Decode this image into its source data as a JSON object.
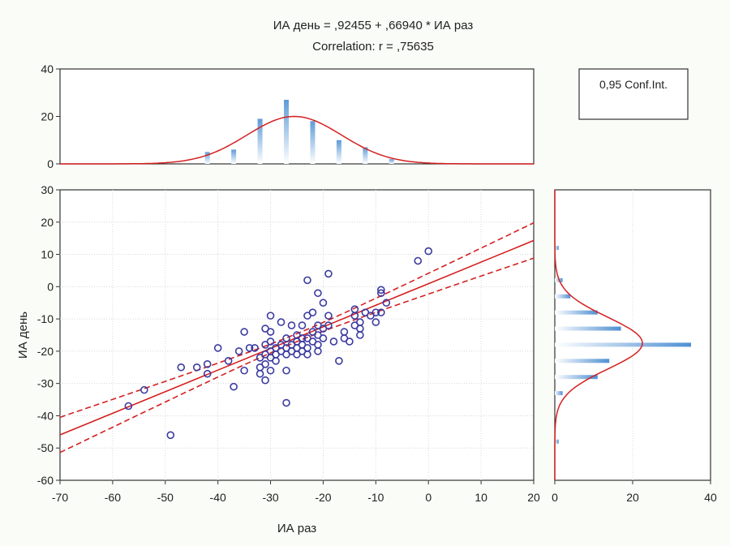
{
  "chart_data": {
    "type": "scatter",
    "title": "ИА день = ,92455 + ,66940 * ИА раз",
    "subtitle": "Correlation: r = ,75635",
    "xlabel": "ИА раз",
    "ylabel": "ИА день",
    "xlim": [
      -70,
      20
    ],
    "ylim": [
      -60,
      30
    ],
    "xticks": [
      "-70",
      "-60",
      "-50",
      "-40",
      "-30",
      "-20",
      "-10",
      "0",
      "10",
      "20"
    ],
    "yticks": [
      "30",
      "20",
      "10",
      "0",
      "-10",
      "-20",
      "-30",
      "-40",
      "-50",
      "-60"
    ],
    "legend": "0,95 Conf.Int.",
    "regression": {
      "intercept": 0.92455,
      "slope": 0.6694,
      "r": 0.75635
    },
    "colors": {
      "points": "#3a3aa0",
      "fit": "#d42020",
      "bars": "#7fb1e3"
    },
    "points": [
      {
        "x": -57,
        "y": -37
      },
      {
        "x": -54,
        "y": -32
      },
      {
        "x": -49,
        "y": -46
      },
      {
        "x": -47,
        "y": -25
      },
      {
        "x": -44,
        "y": -25
      },
      {
        "x": -42,
        "y": -27
      },
      {
        "x": -42,
        "y": -24
      },
      {
        "x": -40,
        "y": -19
      },
      {
        "x": -38,
        "y": -23
      },
      {
        "x": -37,
        "y": -31
      },
      {
        "x": -36,
        "y": -20
      },
      {
        "x": -35,
        "y": -14
      },
      {
        "x": -35,
        "y": -26
      },
      {
        "x": -34,
        "y": -19
      },
      {
        "x": -33,
        "y": -19
      },
      {
        "x": -32,
        "y": -22
      },
      {
        "x": -32,
        "y": -25
      },
      {
        "x": -32,
        "y": -27
      },
      {
        "x": -31,
        "y": -13
      },
      {
        "x": -31,
        "y": -18
      },
      {
        "x": -31,
        "y": -21
      },
      {
        "x": -31,
        "y": -24
      },
      {
        "x": -31,
        "y": -29
      },
      {
        "x": -30,
        "y": -9
      },
      {
        "x": -30,
        "y": -14
      },
      {
        "x": -30,
        "y": -17
      },
      {
        "x": -30,
        "y": -20
      },
      {
        "x": -30,
        "y": -22
      },
      {
        "x": -30,
        "y": -26
      },
      {
        "x": -29,
        "y": -19
      },
      {
        "x": -29,
        "y": -21
      },
      {
        "x": -29,
        "y": -23
      },
      {
        "x": -28,
        "y": -18
      },
      {
        "x": -28,
        "y": -20
      },
      {
        "x": -28,
        "y": -11
      },
      {
        "x": -27,
        "y": -16
      },
      {
        "x": -27,
        "y": -19
      },
      {
        "x": -27,
        "y": -21
      },
      {
        "x": -27,
        "y": -26
      },
      {
        "x": -27,
        "y": -36
      },
      {
        "x": -26,
        "y": -12
      },
      {
        "x": -26,
        "y": -18
      },
      {
        "x": -26,
        "y": -20
      },
      {
        "x": -25,
        "y": -19
      },
      {
        "x": -25,
        "y": -15
      },
      {
        "x": -25,
        "y": -17
      },
      {
        "x": -25,
        "y": -21
      },
      {
        "x": -24,
        "y": -18
      },
      {
        "x": -24,
        "y": -20
      },
      {
        "x": -24,
        "y": -12
      },
      {
        "x": -24,
        "y": -16
      },
      {
        "x": -23,
        "y": 2
      },
      {
        "x": -23,
        "y": -9
      },
      {
        "x": -23,
        "y": -16
      },
      {
        "x": -23,
        "y": -19
      },
      {
        "x": -23,
        "y": -21
      },
      {
        "x": -22,
        "y": -8
      },
      {
        "x": -22,
        "y": -14
      },
      {
        "x": -22,
        "y": -17
      },
      {
        "x": -21,
        "y": -2
      },
      {
        "x": -21,
        "y": -12
      },
      {
        "x": -21,
        "y": -15
      },
      {
        "x": -21,
        "y": -18
      },
      {
        "x": -21,
        "y": -20
      },
      {
        "x": -20,
        "y": -5
      },
      {
        "x": -20,
        "y": -13
      },
      {
        "x": -20,
        "y": -16
      },
      {
        "x": -19,
        "y": 4
      },
      {
        "x": -19,
        "y": -9
      },
      {
        "x": -19,
        "y": -12
      },
      {
        "x": -18,
        "y": -17
      },
      {
        "x": -17,
        "y": -23
      },
      {
        "x": -16,
        "y": -14
      },
      {
        "x": -16,
        "y": -16
      },
      {
        "x": -15,
        "y": -17
      },
      {
        "x": -14,
        "y": -9
      },
      {
        "x": -14,
        "y": -12
      },
      {
        "x": -14,
        "y": -7
      },
      {
        "x": -13,
        "y": -11
      },
      {
        "x": -13,
        "y": -13
      },
      {
        "x": -13,
        "y": -15
      },
      {
        "x": -12,
        "y": -8
      },
      {
        "x": -11,
        "y": -9
      },
      {
        "x": -10,
        "y": -8
      },
      {
        "x": -10,
        "y": -11
      },
      {
        "x": -9,
        "y": -1
      },
      {
        "x": -9,
        "y": -2
      },
      {
        "x": -9,
        "y": -8
      },
      {
        "x": -8,
        "y": -5
      },
      {
        "x": -2,
        "y": 8
      },
      {
        "x": 0,
        "y": 11
      }
    ],
    "x_histogram": {
      "ylim": [
        0,
        40
      ],
      "yticks": [
        "40",
        "20",
        "0"
      ],
      "bins": [
        {
          "center": -42,
          "count": 5
        },
        {
          "center": -37,
          "count": 6
        },
        {
          "center": -32,
          "count": 19
        },
        {
          "center": -27,
          "count": 27
        },
        {
          "center": -22,
          "count": 18
        },
        {
          "center": -17,
          "count": 10
        },
        {
          "center": -12,
          "count": 7
        },
        {
          "center": -7,
          "count": 2
        }
      ],
      "normal_peak": 20,
      "normal_mean": -25.5,
      "normal_sd": 9.0
    },
    "y_histogram": {
      "xlim": [
        0,
        40
      ],
      "xticks": [
        "0",
        "20",
        "40"
      ],
      "bins": [
        {
          "center": 12,
          "count": 1
        },
        {
          "center": 2,
          "count": 2
        },
        {
          "center": -3,
          "count": 4
        },
        {
          "center": -8,
          "count": 11
        },
        {
          "center": -13,
          "count": 17
        },
        {
          "center": -18,
          "count": 35
        },
        {
          "center": -23,
          "count": 14
        },
        {
          "center": -28,
          "count": 11
        },
        {
          "center": -33,
          "count": 2
        },
        {
          "center": -48,
          "count": 1
        }
      ],
      "normal_peak": 22.5,
      "normal_mean": -17.5,
      "normal_sd": 8.0
    }
  }
}
